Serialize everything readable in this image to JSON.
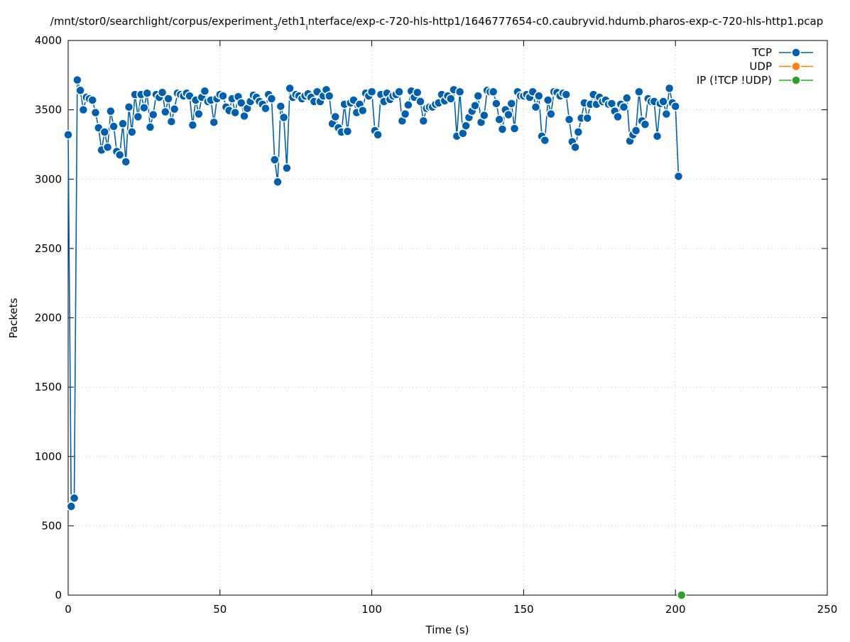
{
  "chart_data": {
    "type": "line",
    "title_parts": [
      {
        "text": "/mnt/stor0/searchlight/corpus/experiment",
        "sub": false
      },
      {
        "text": "3",
        "sub": true
      },
      {
        "text": "/eth1",
        "sub": false
      },
      {
        "text": "i",
        "sub": true
      },
      {
        "text": "nterface/exp-c-720-hls-http1/1646777654-c0.caubryvid.hdumb.pharos-exp-c-720-hls-http1.pcap",
        "sub": false
      }
    ],
    "xlabel": "Time (s)",
    "ylabel": "Packets",
    "xlim": [
      0,
      250
    ],
    "ylim": [
      0,
      4000
    ],
    "xticks": [
      0,
      50,
      100,
      150,
      200,
      250
    ],
    "yticks": [
      0,
      500,
      1000,
      1500,
      2000,
      2500,
      3000,
      3500,
      4000
    ],
    "grid": true,
    "legend": "top-right",
    "series": [
      {
        "name": "TCP",
        "color": "#0060ad",
        "x": [
          0,
          1,
          2,
          3,
          4,
          5,
          6,
          7,
          8,
          9,
          10,
          11,
          12,
          13,
          14,
          15,
          16,
          17,
          18,
          19,
          20,
          21,
          22,
          23,
          24,
          25,
          26,
          27,
          28,
          29,
          30,
          31,
          32,
          33,
          34,
          35,
          36,
          37,
          38,
          39,
          40,
          41,
          42,
          43,
          44,
          45,
          46,
          47,
          48,
          49,
          50,
          51,
          52,
          53,
          54,
          55,
          56,
          57,
          58,
          59,
          60,
          61,
          62,
          63,
          64,
          65,
          66,
          67,
          68,
          69,
          70,
          71,
          72,
          73,
          74,
          75,
          76,
          77,
          78,
          79,
          80,
          81,
          82,
          83,
          84,
          85,
          86,
          87,
          88,
          89,
          90,
          91,
          92,
          93,
          94,
          95,
          96,
          97,
          98,
          99,
          100,
          101,
          102,
          103,
          104,
          105,
          106,
          107,
          108,
          109,
          110,
          111,
          112,
          113,
          114,
          115,
          116,
          117,
          118,
          119,
          120,
          121,
          122,
          123,
          124,
          125,
          126,
          127,
          128,
          129,
          130,
          131,
          132,
          133,
          134,
          135,
          136,
          137,
          138,
          139,
          140,
          141,
          142,
          143,
          144,
          145,
          146,
          147,
          148,
          149,
          150,
          151,
          152,
          153,
          154,
          155,
          156,
          157,
          158,
          159,
          160,
          161,
          162,
          163,
          164,
          165,
          166,
          167,
          168,
          169,
          170,
          171,
          172,
          173,
          174,
          175,
          176,
          177,
          178,
          179,
          180,
          181,
          182,
          183,
          184,
          185,
          186,
          187,
          188,
          189,
          190,
          191,
          192,
          193,
          194,
          195,
          196,
          197,
          198,
          199,
          200,
          201
        ],
        "values": [
          3320,
          640,
          700,
          3715,
          3640,
          3500,
          3590,
          3580,
          3570,
          3480,
          3370,
          3210,
          3340,
          3230,
          3490,
          3380,
          3200,
          3175,
          3400,
          3125,
          3520,
          3340,
          3610,
          3450,
          3610,
          3515,
          3620,
          3375,
          3465,
          3610,
          3590,
          3625,
          3485,
          3580,
          3415,
          3505,
          3620,
          3610,
          3600,
          3620,
          3600,
          3390,
          3570,
          3470,
          3590,
          3635,
          3560,
          3570,
          3410,
          3580,
          3610,
          3600,
          3520,
          3495,
          3580,
          3480,
          3595,
          3550,
          3455,
          3510,
          3560,
          3605,
          3590,
          3560,
          3540,
          3510,
          3610,
          3580,
          3140,
          2980,
          3525,
          3445,
          3080,
          3655,
          3590,
          3610,
          3600,
          3580,
          3600,
          3615,
          3590,
          3560,
          3630,
          3560,
          3600,
          3645,
          3600,
          3400,
          3450,
          3370,
          3340,
          3540,
          3345,
          3550,
          3570,
          3480,
          3540,
          3495,
          3620,
          3600,
          3630,
          3350,
          3320,
          3610,
          3560,
          3620,
          3575,
          3600,
          3610,
          3630,
          3420,
          3470,
          3535,
          3635,
          3590,
          3625,
          3560,
          3420,
          3510,
          3520,
          3520,
          3540,
          3550,
          3610,
          3565,
          3600,
          3580,
          3645,
          3310,
          3630,
          3330,
          3385,
          3445,
          3490,
          3530,
          3600,
          3410,
          3460,
          3640,
          3630,
          3630,
          3545,
          3430,
          3360,
          3500,
          3465,
          3545,
          3365,
          3630,
          3600,
          3600,
          3610,
          3590,
          3630,
          3520,
          3600,
          3310,
          3280,
          3570,
          3470,
          3630,
          3625,
          3600,
          3620,
          3610,
          3430,
          3270,
          3230,
          3340,
          3440,
          3550,
          3440,
          3540,
          3610,
          3540,
          3590,
          3560,
          3570,
          3540,
          3545,
          3490,
          3450,
          3540,
          3520,
          3585,
          3275,
          3320,
          3350,
          3630,
          3420,
          3395,
          3580,
          3560,
          3560,
          3310,
          3545,
          3560,
          3470,
          3655,
          3550,
          3525,
          3020
        ]
      },
      {
        "name": "UDP",
        "color": "#ff7f0e",
        "x": [
          202
        ],
        "values": [
          0
        ]
      },
      {
        "name": "IP (!TCP  !UDP)",
        "color": "#2ca02c",
        "x": [
          202
        ],
        "values": [
          0
        ]
      }
    ]
  }
}
